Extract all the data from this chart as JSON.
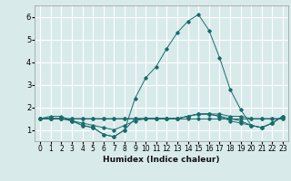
{
  "title": "",
  "xlabel": "Humidex (Indice chaleur)",
  "xlim": [
    -0.5,
    23.5
  ],
  "ylim": [
    0.5,
    6.5
  ],
  "yticks": [
    1,
    2,
    3,
    4,
    5,
    6
  ],
  "xticks": [
    0,
    1,
    2,
    3,
    4,
    5,
    6,
    7,
    8,
    9,
    10,
    11,
    12,
    13,
    14,
    15,
    16,
    17,
    18,
    19,
    20,
    21,
    22,
    23
  ],
  "bg_color": "#d9eaea",
  "line_color": "#1a6b6b",
  "grid_color": "#ffffff",
  "series": {
    "main": [
      1.5,
      1.6,
      1.6,
      1.4,
      1.2,
      1.1,
      0.8,
      0.7,
      1.0,
      2.4,
      3.3,
      3.8,
      4.6,
      5.3,
      5.8,
      6.1,
      5.4,
      4.2,
      2.8,
      1.9,
      1.2,
      1.1,
      1.3,
      1.6
    ],
    "line2": [
      1.5,
      1.5,
      1.5,
      1.5,
      1.5,
      1.5,
      1.5,
      1.5,
      1.5,
      1.5,
      1.5,
      1.5,
      1.5,
      1.5,
      1.6,
      1.7,
      1.7,
      1.7,
      1.6,
      1.6,
      1.5,
      1.5,
      1.5,
      1.5
    ],
    "line3": [
      1.5,
      1.5,
      1.5,
      1.5,
      1.5,
      1.5,
      1.5,
      1.5,
      1.5,
      1.5,
      1.5,
      1.5,
      1.5,
      1.5,
      1.5,
      1.5,
      1.5,
      1.5,
      1.5,
      1.5,
      1.5,
      1.5,
      1.5,
      1.5
    ],
    "line4": [
      1.5,
      1.5,
      1.5,
      1.4,
      1.3,
      1.2,
      1.1,
      1.0,
      1.2,
      1.4,
      1.5,
      1.5,
      1.5,
      1.5,
      1.6,
      1.7,
      1.7,
      1.6,
      1.5,
      1.4,
      1.2,
      1.1,
      1.3,
      1.6
    ],
    "line5": [
      1.5,
      1.5,
      1.5,
      1.4,
      1.2,
      1.1,
      0.8,
      0.7,
      1.0,
      1.5,
      1.5,
      1.5,
      1.5,
      1.5,
      1.6,
      1.7,
      1.7,
      1.6,
      1.4,
      1.3,
      1.2,
      1.1,
      1.3,
      1.6
    ]
  }
}
